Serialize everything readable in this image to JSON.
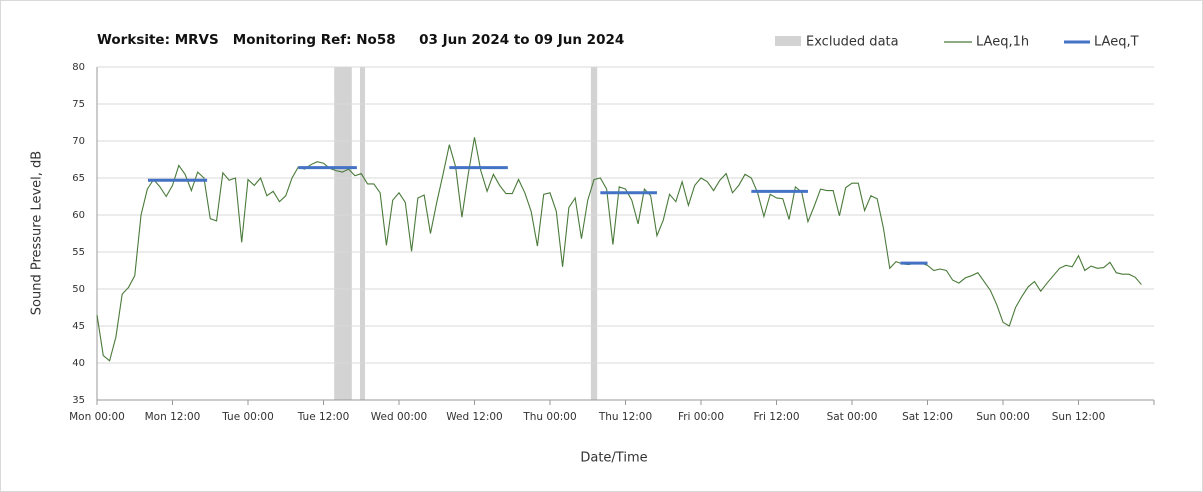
{
  "chart_data": {
    "type": "line",
    "title": "Worksite: MRVS   Monitoring Ref: No58     03 Jun 2024 to 09 Jun 2024",
    "x_label": "Date/Time",
    "y_label": "Sound Pressure Level, dB",
    "xlim": [
      0,
      168
    ],
    "xticks": [
      {
        "value": 0,
        "label": "Mon 00:00"
      },
      {
        "value": 12,
        "label": "Mon 12:00"
      },
      {
        "value": 24,
        "label": "Tue 00:00"
      },
      {
        "value": 36,
        "label": "Tue 12:00"
      },
      {
        "value": 48,
        "label": "Wed 00:00"
      },
      {
        "value": 60,
        "label": "Wed 12:00"
      },
      {
        "value": 72,
        "label": "Thu 00:00"
      },
      {
        "value": 84,
        "label": "Thu 12:00"
      },
      {
        "value": 96,
        "label": "Fri 00:00"
      },
      {
        "value": 108,
        "label": "Fri 12:00"
      },
      {
        "value": 120,
        "label": "Sat 00:00"
      },
      {
        "value": 132,
        "label": "Sat 12:00"
      },
      {
        "value": 144,
        "label": "Sun 00:00"
      },
      {
        "value": 156,
        "label": "Sun 12:00"
      }
    ],
    "ylim": [
      35,
      80
    ],
    "yticks": [
      35,
      40,
      45,
      50,
      55,
      60,
      65,
      70,
      75,
      80
    ],
    "grid": true,
    "excluded": {
      "name": "Excluded data",
      "color": "#d3d3d3",
      "ranges": [
        [
          37.7,
          40.5
        ],
        [
          41.8,
          42.6
        ],
        [
          78.5,
          79.5
        ]
      ]
    },
    "series": [
      {
        "name": "LAeq,1h",
        "color": "#4a7a3a",
        "x": [
          0,
          1,
          2,
          3,
          4,
          5,
          6,
          7,
          8,
          9,
          10,
          11,
          12,
          13,
          14,
          15,
          16,
          17,
          18,
          19,
          20,
          21,
          22,
          23,
          24,
          25,
          26,
          27,
          28,
          29,
          30,
          31,
          32,
          33,
          34,
          35,
          36,
          37,
          38,
          39,
          40,
          41,
          42,
          43,
          44,
          45,
          46,
          47,
          48,
          49,
          50,
          51,
          52,
          53,
          54,
          55,
          56,
          57,
          58,
          59,
          60,
          61,
          62,
          63,
          64,
          65,
          66,
          67,
          68,
          69,
          70,
          71,
          72,
          73,
          74,
          75,
          76,
          77,
          78,
          79,
          80,
          81,
          82,
          83,
          84,
          85,
          86,
          87,
          88,
          89,
          90,
          91,
          92,
          93,
          94,
          95,
          96,
          97,
          98,
          99,
          100,
          101,
          102,
          103,
          104,
          105,
          106,
          107,
          108,
          109,
          110,
          111,
          112,
          113,
          114,
          115,
          116,
          117,
          118,
          119,
          120,
          121,
          122,
          123,
          124,
          125,
          126,
          127,
          128,
          129,
          130,
          131,
          132,
          133,
          134,
          135,
          136,
          137,
          138,
          139,
          140,
          141,
          142,
          143,
          144,
          145,
          146,
          147,
          148,
          149,
          150,
          151,
          152,
          153,
          154,
          155,
          156,
          157,
          158,
          159,
          160,
          161,
          162,
          163,
          164,
          165,
          166
        ],
        "values": [
          46.5,
          41,
          40.3,
          43.5,
          49.3,
          50.2,
          51.8,
          60,
          63.5,
          64.8,
          63.8,
          62.5,
          64,
          66.7,
          65.5,
          63.3,
          65.8,
          65,
          59.5,
          59.2,
          65.7,
          64.7,
          65,
          56.3,
          64.8,
          64,
          65,
          62.6,
          63.2,
          61.8,
          62.6,
          65,
          66.5,
          66.2,
          66.8,
          67.2,
          67,
          66.3,
          66,
          65.8,
          66.2,
          65.3,
          65.6,
          64.2,
          64.2,
          63,
          55.9,
          62,
          63,
          61.7,
          55.1,
          62.3,
          62.7,
          57.5,
          61.7,
          65.5,
          69.5,
          66.5,
          59.7,
          65.5,
          70.5,
          66,
          63.2,
          65.5,
          64,
          62.9,
          62.9,
          64.8,
          63,
          60.5,
          55.8,
          62.8,
          63,
          60.5,
          53,
          61,
          62.3,
          56.8,
          62,
          64.8,
          65,
          63.5,
          56,
          63.8,
          63.5,
          62,
          58.8,
          63.5,
          62.6,
          57.2,
          59.3,
          62.8,
          61.8,
          64.5,
          61.3,
          64,
          65,
          64.5,
          63.3,
          64.7,
          65.6,
          63,
          64,
          65.5,
          65,
          63,
          59.8,
          62.8,
          62.3,
          62.2,
          59.4,
          63.8,
          63.1,
          59.1,
          61.2,
          63.5,
          63.3,
          63.3,
          59.9,
          63.7,
          64.3,
          64.3,
          60.6,
          62.6,
          62.2,
          58.2,
          52.8,
          53.7,
          53.4,
          53.3,
          53.5,
          53.5,
          53.2,
          52.5,
          52.7,
          52.5,
          51.2,
          50.8,
          51.5,
          51.8,
          52.2,
          51,
          49.8,
          47.9,
          45.5,
          45,
          47.5,
          49,
          50.3,
          51,
          49.7,
          50.8,
          51.8,
          52.8,
          53.2,
          53,
          54.5,
          52.5,
          53.1,
          52.8,
          52.9,
          53.6,
          52.2,
          52,
          52,
          51.6,
          50.6
        ]
      },
      {
        "name": "LAeq,T",
        "color": "#4472c4",
        "x_start": [
          8.1,
          32,
          56,
          80,
          104,
          127.7
        ],
        "x_end": [
          17.5,
          41.3,
          65.3,
          89,
          113,
          132
        ],
        "values": [
          64.7,
          66.4,
          66.4,
          63,
          63.2,
          53.5
        ]
      }
    ]
  }
}
